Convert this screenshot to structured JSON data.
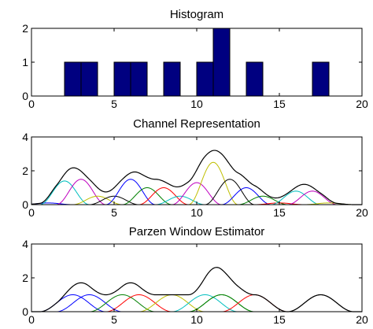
{
  "chart_data": [
    {
      "type": "bar",
      "title": "Histogram",
      "xlim": [
        0,
        20
      ],
      "ylim": [
        0,
        2
      ],
      "xticks": [
        0,
        5,
        10,
        15,
        20
      ],
      "yticks": [
        0,
        1,
        2
      ],
      "bar_color": "#000080",
      "bar_width": 1,
      "bars": [
        {
          "x": 2.5,
          "y": 1
        },
        {
          "x": 3.5,
          "y": 1
        },
        {
          "x": 5.5,
          "y": 1
        },
        {
          "x": 6.5,
          "y": 1
        },
        {
          "x": 8.5,
          "y": 1
        },
        {
          "x": 10.5,
          "y": 1
        },
        {
          "x": 11.5,
          "y": 2
        },
        {
          "x": 13.5,
          "y": 1
        },
        {
          "x": 17.5,
          "y": 1
        }
      ]
    },
    {
      "type": "line",
      "title": "Channel Representation",
      "xlim": [
        0,
        20
      ],
      "ylim": [
        0,
        4
      ],
      "xticks": [
        0,
        5,
        10,
        15,
        20
      ],
      "yticks": [
        0,
        2,
        4
      ],
      "kernel": "cos2",
      "channel_width": 3,
      "sum_color": "#000000",
      "channels": [
        {
          "center": 1,
          "amplitude": 0.1,
          "color": "#0000ff"
        },
        {
          "center": 2,
          "amplitude": 1.4,
          "color": "#00bfbf"
        },
        {
          "center": 3,
          "amplitude": 1.5,
          "color": "#bf00bf"
        },
        {
          "center": 4,
          "amplitude": 0.5,
          "color": "#bfbf00"
        },
        {
          "center": 5,
          "amplitude": 0.5,
          "color": "#000000"
        },
        {
          "center": 6,
          "amplitude": 1.5,
          "color": "#0000ff"
        },
        {
          "center": 7,
          "amplitude": 1.0,
          "color": "#008000"
        },
        {
          "center": 8,
          "amplitude": 1.0,
          "color": "#ff0000"
        },
        {
          "center": 9,
          "amplitude": 0.5,
          "color": "#00bfbf"
        },
        {
          "center": 10,
          "amplitude": 1.3,
          "color": "#bf00bf"
        },
        {
          "center": 11,
          "amplitude": 2.5,
          "color": "#bfbf00"
        },
        {
          "center": 12,
          "amplitude": 1.5,
          "color": "#000000"
        },
        {
          "center": 13,
          "amplitude": 1.0,
          "color": "#0000ff"
        },
        {
          "center": 14,
          "amplitude": 0.5,
          "color": "#008000"
        },
        {
          "center": 15,
          "amplitude": 0.1,
          "color": "#ff0000"
        },
        {
          "center": 16,
          "amplitude": 0.8,
          "color": "#00bfbf"
        },
        {
          "center": 17,
          "amplitude": 0.8,
          "color": "#bf00bf"
        },
        {
          "center": 18,
          "amplitude": 0.1,
          "color": "#bfbf00"
        }
      ]
    },
    {
      "type": "line",
      "title": "Parzen Window Estimator",
      "xlim": [
        0,
        20
      ],
      "ylim": [
        0,
        4
      ],
      "xticks": [
        0,
        5,
        10,
        15,
        20
      ],
      "yticks": [
        0,
        2,
        4
      ],
      "kernel": "cos2",
      "window_width": 4,
      "sum_color": "#000000",
      "windows": [
        {
          "center": 2.5,
          "amplitude": 1.0,
          "color": "#0000ff"
        },
        {
          "center": 3.5,
          "amplitude": 1.0,
          "color": "#0000ff"
        },
        {
          "center": 5.5,
          "amplitude": 1.0,
          "color": "#008000"
        },
        {
          "center": 6.5,
          "amplitude": 1.0,
          "color": "#ff0000"
        },
        {
          "center": 8.5,
          "amplitude": 1.0,
          "color": "#bfbf00"
        },
        {
          "center": 10.5,
          "amplitude": 1.0,
          "color": "#00bfbf"
        },
        {
          "center": 11.5,
          "amplitude": 1.0,
          "color": "#008000"
        },
        {
          "center": 11.5,
          "amplitude": 1.0,
          "color": "#008000"
        },
        {
          "center": 13.5,
          "amplitude": 1.0,
          "color": "#ff0000"
        },
        {
          "center": 17.5,
          "amplitude": 1.0,
          "color": "#000000"
        }
      ]
    }
  ]
}
